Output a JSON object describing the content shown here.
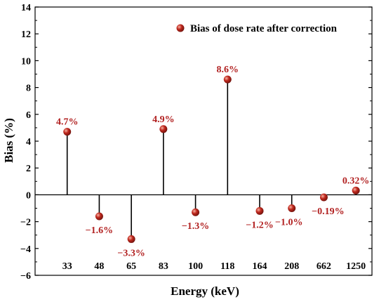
{
  "chart_data": {
    "type": "lollipop",
    "title": "",
    "xlabel": "Energy (keV)",
    "ylabel": "Bias (%)",
    "ylim": [
      -6,
      14
    ],
    "yticks": [
      -6,
      -4,
      -2,
      0,
      2,
      4,
      6,
      8,
      10,
      12,
      14
    ],
    "categories": [
      "33",
      "48",
      "65",
      "83",
      "100",
      "118",
      "164",
      "208",
      "662",
      "1250"
    ],
    "series": [
      {
        "name": "Bias of dose rate after correction",
        "values": [
          4.7,
          -1.6,
          -3.3,
          4.9,
          -1.3,
          8.6,
          -1.2,
          -1.0,
          -0.19,
          0.32
        ],
        "labels": [
          "4.7%",
          "−1.6%",
          "−3.3%",
          "4.9%",
          "−1.3%",
          "8.6%",
          "−1.2%",
          "−1.0%",
          "−0.19%",
          "0.32%"
        ]
      }
    ],
    "legend_position": "top-right",
    "grid": false,
    "colors": {
      "marker": "#c0281e",
      "label": "#b22222",
      "stem": "#000000"
    }
  }
}
